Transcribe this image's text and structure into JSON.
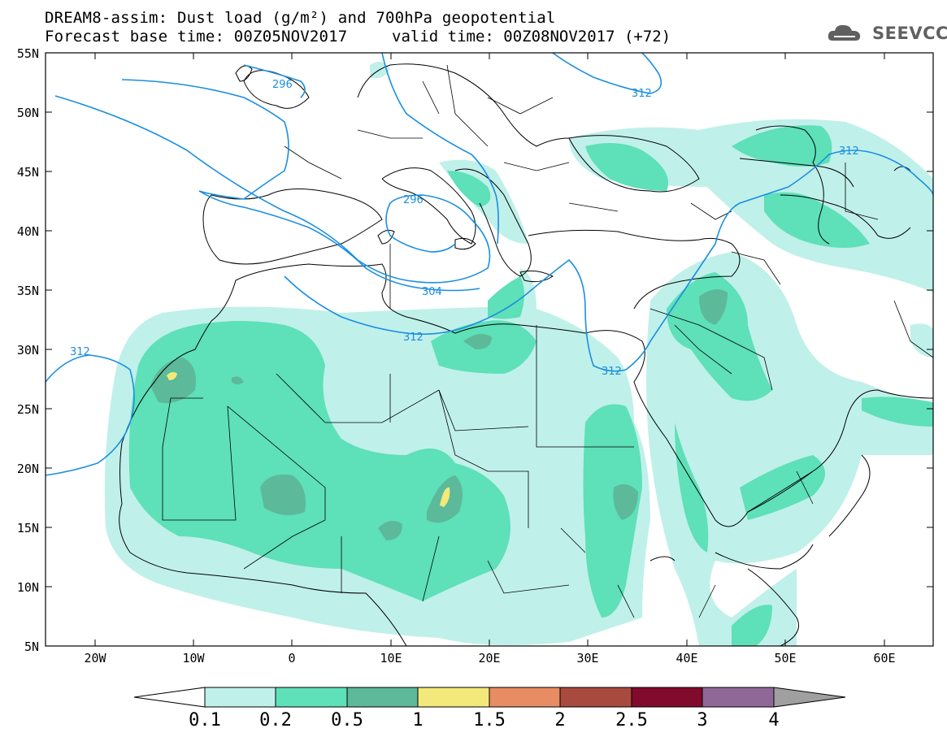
{
  "header": {
    "title_line1": "DREAM8-assim: Dust load (g/m²) and 700hPa geopotential",
    "title_line2": "Forecast base time: 00Z05NOV2017",
    "valid_time": "valid time: 00Z08NOV2017 (+72)",
    "logo_text": "SEEVCCC"
  },
  "map": {
    "lat_labels": [
      "55N",
      "50N",
      "45N",
      "40N",
      "35N",
      "30N",
      "25N",
      "20N",
      "15N",
      "10N",
      "5N"
    ],
    "lon_labels": [
      "20W",
      "10W",
      "0",
      "10E",
      "20E",
      "30E",
      "40E",
      "50E",
      "60E"
    ],
    "geopotential_labels": [
      "296",
      "296",
      "304",
      "312",
      "312",
      "312",
      "312",
      "312"
    ]
  },
  "legend": {
    "levels": [
      "0.1",
      "0.2",
      "0.5",
      "1",
      "1.5",
      "2",
      "2.5",
      "3",
      "4"
    ],
    "colors": {
      "c1": "#c0f0ea",
      "c2": "#5ee0b8",
      "c3": "#5cb99a",
      "c4": "#f2e97a",
      "c5": "#e88c64",
      "c6": "#a84a3e",
      "c7": "#820a2c",
      "c8": "#8f6898",
      "c9": "#a0a0a0"
    }
  }
}
